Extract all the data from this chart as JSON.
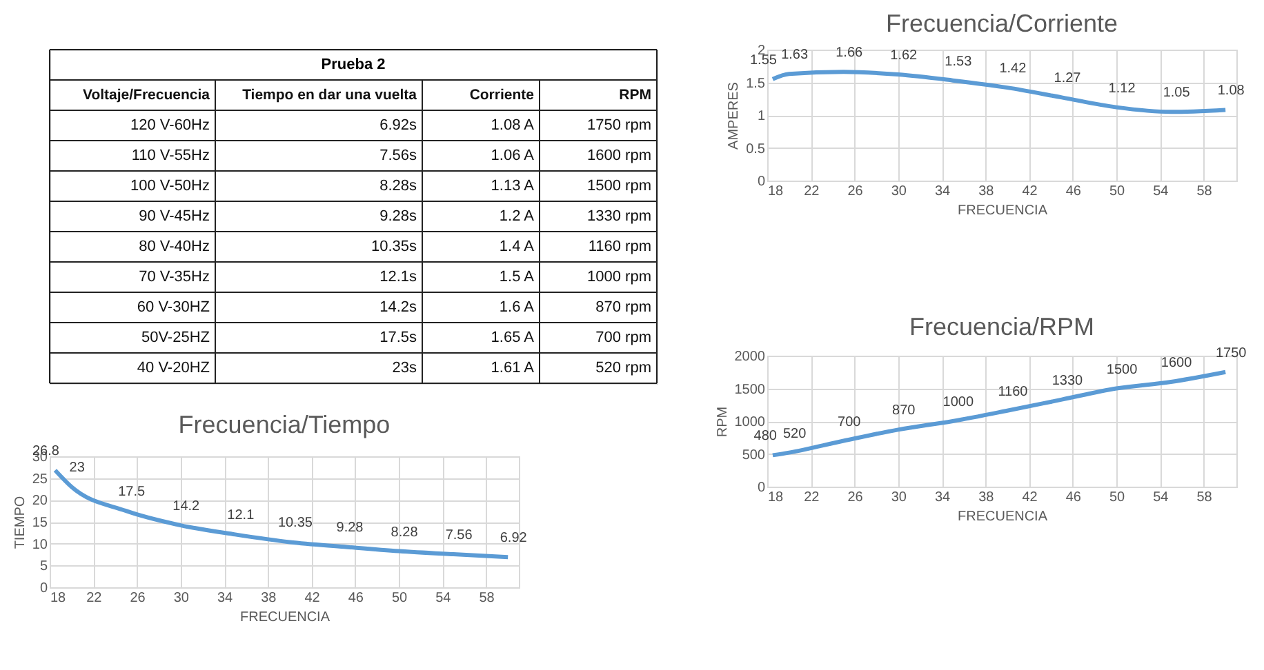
{
  "chart_data": [
    {
      "type": "other",
      "title": "Prueba 2",
      "annotations": [
        "Voltaje/Frecuencia",
        "Tiempo en dar una vuelta",
        "Corriente",
        "RPM",
        "120 V-60Hz",
        "6.92s",
        "1.08 A",
        "1750 rpm",
        "110 V-55Hz",
        "7.56s",
        "1.06 A",
        "1600 rpm",
        "100 V-50Hz",
        "8.28s",
        "1.13 A",
        "1500 rpm",
        "90 V-45Hz",
        "9.28s",
        "1.2 A",
        "1330 rpm",
        "80 V-40Hz",
        "10.35s",
        "1.4 A",
        "1160 rpm",
        "70 V-35Hz",
        "12.1s",
        "1.5 A",
        "1000 rpm",
        "60 V-30HZ",
        "14.2s",
        "1.6 A",
        "870 rpm",
        "50V-25HZ",
        "17.5s",
        "1.65 A",
        "700 rpm",
        "40 V-20HZ",
        "23s",
        "1.61 A",
        "520 rpm"
      ]
    },
    {
      "type": "line",
      "title": "Frecuencia/Corriente",
      "xlabel": "FRECUENCIA",
      "ylabel": "AMPERES",
      "x": [
        18.5,
        20,
        25,
        30,
        35,
        40,
        45,
        50,
        55,
        60
      ],
      "series": [
        {
          "color": "#5b9bd5",
          "values": [
            1.55,
            1.63,
            1.66,
            1.62,
            1.53,
            1.42,
            1.27,
            1.12,
            1.05,
            1.08
          ]
        }
      ],
      "xlim": [
        18,
        61
      ],
      "xticks": [
        18,
        22,
        26,
        30,
        34,
        38,
        42,
        46,
        50,
        54,
        58
      ],
      "ylim": [
        0,
        2
      ],
      "yticks": [
        0,
        0.5,
        1,
        1.5,
        2
      ],
      "grid": true,
      "data_labels": true,
      "marker": "none",
      "line_style": "solid"
    },
    {
      "type": "line",
      "title": "Frecuencia/Tiempo",
      "xlabel": "FRECUENCIA",
      "ylabel": "TIEMPO",
      "x": [
        18.5,
        20,
        25,
        30,
        35,
        40,
        45,
        50,
        55,
        60
      ],
      "series": [
        {
          "color": "#5b9bd5",
          "values": [
            26.8,
            23,
            17.5,
            14.2,
            12.1,
            10.35,
            9.28,
            8.28,
            7.56,
            6.92
          ]
        }
      ],
      "xlim": [
        18,
        61
      ],
      "xticks": [
        18,
        22,
        26,
        30,
        34,
        38,
        42,
        46,
        50,
        54,
        58
      ],
      "ylim": [
        0,
        30
      ],
      "yticks": [
        0,
        5,
        10,
        15,
        20,
        25,
        30
      ],
      "grid": true,
      "data_labels": true,
      "marker": "none",
      "line_style": "solid"
    },
    {
      "type": "line",
      "title": "Frecuencia/RPM",
      "xlabel": "FRECUENCIA",
      "ylabel": "RPM",
      "x": [
        18.5,
        20,
        25,
        30,
        35,
        40,
        45,
        50,
        55,
        60
      ],
      "series": [
        {
          "color": "#5b9bd5",
          "values": [
            480,
            520,
            700,
            870,
            1000,
            1160,
            1330,
            1500,
            1600,
            1750
          ]
        }
      ],
      "xlim": [
        18,
        61
      ],
      "xticks": [
        18,
        22,
        26,
        30,
        34,
        38,
        42,
        46,
        50,
        54,
        58
      ],
      "ylim": [
        0,
        2000
      ],
      "yticks": [
        0,
        500,
        1000,
        1500,
        2000
      ],
      "grid": true,
      "data_labels": true,
      "marker": "none",
      "line_style": "solid"
    }
  ]
}
